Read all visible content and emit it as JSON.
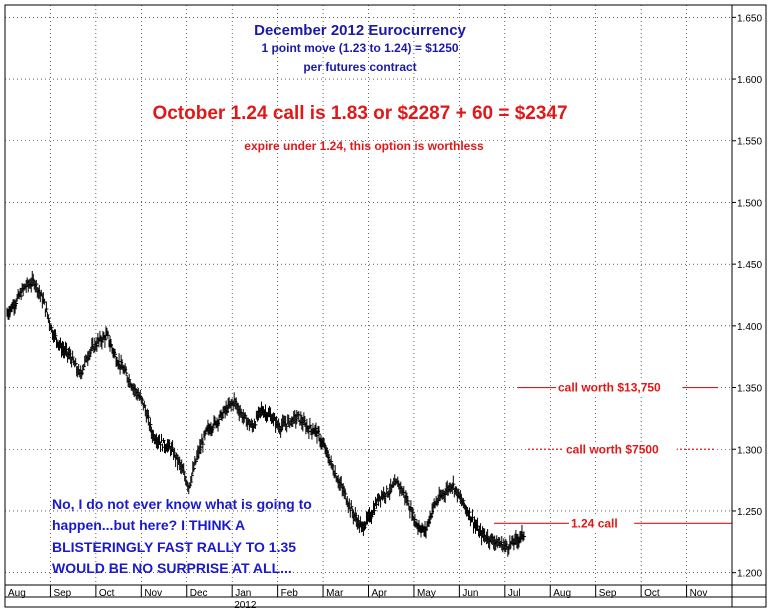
{
  "chart_data": {
    "type": "line",
    "style": "ohlc-bars",
    "title": "December 2012 Eurocurrency",
    "subtitle_lines": [
      "1 point move  (1.23 to 1.24) = $1250",
      "per futures contract"
    ],
    "headline": "October 1.24 call is 1.83 or $2287 + 60 = $2347",
    "headline_sub": "expire under 1.24, this option is worthless",
    "note_lines": [
      "No, I do not ever know what is going to",
      "happen...but here?  I THINK A",
      "BLISTERINGLY FAST RALLY TO   1.35",
      "WOULD BE NO SURPRISE AT ALL..."
    ],
    "y_axis": {
      "position": "right",
      "ylim": [
        1.19,
        1.66
      ],
      "ticks": [
        "1.650",
        "1.600",
        "1.550",
        "1.500",
        "1.450",
        "1.400",
        "1.350",
        "1.300",
        "1.250",
        "1.200"
      ],
      "tick_values": [
        1.65,
        1.6,
        1.55,
        1.5,
        1.45,
        1.4,
        1.35,
        1.3,
        1.25,
        1.2
      ]
    },
    "x_axis": {
      "months": [
        "Aug",
        "Sep",
        "Oct",
        "Nov",
        "Dec",
        "Jan",
        "Feb",
        "Mar",
        "Apr",
        "May",
        "Jun",
        "Jul",
        "Aug",
        "Sep",
        "Oct",
        "Nov"
      ],
      "year_label": "2012"
    },
    "grid": true,
    "reference_lines": [
      {
        "label": "call worth $13,750",
        "value": 1.35,
        "color": "#e01818",
        "style": "solid"
      },
      {
        "label": "call worth $7500",
        "value": 1.3,
        "color": "#e01818",
        "style": "dotted"
      },
      {
        "label": "1.24 call",
        "value": 1.24,
        "color": "#e01818",
        "style": "solid"
      }
    ],
    "series": [
      {
        "x": [
          0.0,
          0.2,
          0.4,
          0.6,
          0.8,
          1.0,
          1.2,
          1.4,
          1.6,
          1.8,
          2.0,
          2.2,
          2.4,
          2.6,
          2.8,
          3.0,
          3.2,
          3.4,
          3.6,
          3.8,
          4.0,
          4.2,
          4.4,
          4.6,
          4.8,
          5.0,
          5.2,
          5.4,
          5.6,
          5.8,
          6.0,
          6.2,
          6.4,
          6.6,
          6.8,
          7.0,
          7.2,
          7.4,
          7.6,
          7.8,
          8.0,
          8.2,
          8.4,
          8.6,
          8.8,
          9.0,
          9.2,
          9.4,
          9.6,
          9.8,
          10.0,
          10.2,
          10.4,
          10.6,
          10.8,
          11.0,
          11.2,
          11.4
        ],
        "y": [
          1.41,
          1.42,
          1.432,
          1.436,
          1.42,
          1.395,
          1.382,
          1.375,
          1.36,
          1.378,
          1.387,
          1.392,
          1.374,
          1.362,
          1.349,
          1.337,
          1.312,
          1.305,
          1.301,
          1.288,
          1.27,
          1.296,
          1.315,
          1.322,
          1.331,
          1.339,
          1.326,
          1.318,
          1.332,
          1.327,
          1.318,
          1.322,
          1.326,
          1.318,
          1.315,
          1.3,
          1.282,
          1.266,
          1.249,
          1.236,
          1.246,
          1.262,
          1.266,
          1.273,
          1.259,
          1.24,
          1.233,
          1.255,
          1.264,
          1.272,
          1.258,
          1.246,
          1.232,
          1.228,
          1.224,
          1.221,
          1.226,
          1.232
        ]
      }
    ]
  }
}
